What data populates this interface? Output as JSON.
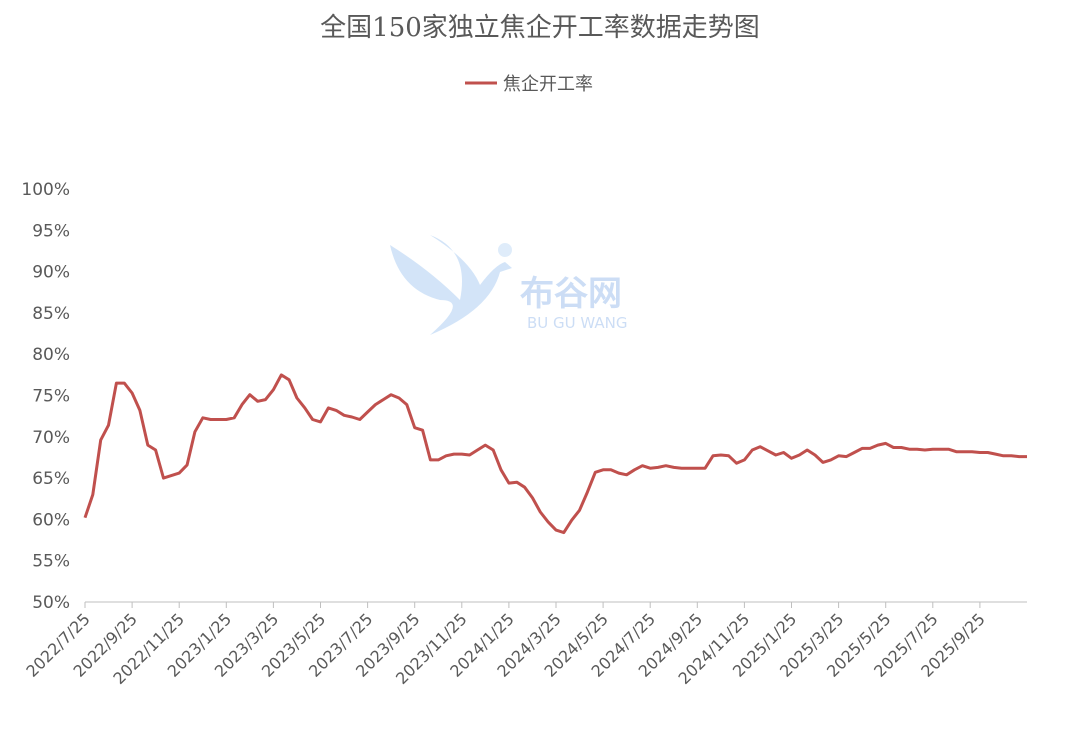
{
  "chart_data": {
    "type": "line",
    "title": "全国150家独立焦企开工率数据走势图",
    "watermark": {
      "name": "布谷网",
      "subtitle": "BU GU WANG"
    },
    "categories": [
      "2022/7/25",
      null,
      null,
      null,
      null,
      null,
      "2022/9/25",
      null,
      null,
      null,
      null,
      null,
      "2022/11/25",
      null,
      null,
      null,
      null,
      null,
      "2023/1/25",
      null,
      null,
      null,
      null,
      null,
      "2023/3/25",
      null,
      null,
      null,
      null,
      null,
      "2023/5/25",
      null,
      null,
      null,
      null,
      null,
      "2023/7/25",
      null,
      null,
      null,
      null,
      null,
      "2023/9/25",
      null,
      null,
      null,
      null,
      null,
      "2023/11/25",
      null,
      null,
      null,
      null,
      null,
      "2024/1/25",
      null,
      null,
      null,
      null,
      null,
      "2024/3/25",
      null,
      null,
      null,
      null,
      null,
      "2024/5/25",
      null,
      null,
      null,
      null,
      null,
      "2024/7/25",
      null,
      null,
      null,
      null,
      null,
      "2024/9/25",
      null,
      null,
      null,
      null,
      null,
      "2024/11/25",
      null,
      null,
      null,
      null,
      null,
      "2025/1/25",
      null,
      null,
      null,
      null,
      null,
      "2025/3/25",
      null,
      null,
      null,
      null,
      null,
      "2025/5/25",
      null,
      null,
      null,
      null,
      null,
      "2025/7/25",
      null,
      null,
      null,
      null,
      null,
      "2025/9/25",
      null,
      null,
      null,
      null,
      null,
      null
    ],
    "series": [
      {
        "name": "焦企开工率",
        "color": "#c0504d",
        "values": [
          60.2,
          63,
          69.6,
          71.4,
          76.5,
          76.5,
          75.3,
          73.2,
          69,
          68.4,
          65,
          65.3,
          65.6,
          66.6,
          70.6,
          72.3,
          72.1,
          72.1,
          72.1,
          72.3,
          73.9,
          75.1,
          74.3,
          74.5,
          75.7,
          77.5,
          76.9,
          74.7,
          73.5,
          72.1,
          71.8,
          73.5,
          73.2,
          72.6,
          72.4,
          72.1,
          73,
          73.9,
          74.5,
          75.1,
          74.7,
          73.9,
          71.1,
          70.8,
          67.2,
          67.2,
          67.7,
          67.9,
          67.9,
          67.8,
          68.4,
          69,
          68.4,
          66,
          64.4,
          64.5,
          63.9,
          62.6,
          60.9,
          59.7,
          58.7,
          58.4,
          59.9,
          61.1,
          63.3,
          65.7,
          66,
          66,
          65.6,
          65.4,
          66,
          66.5,
          66.2,
          66.3,
          66.5,
          66.3,
          66.2,
          66.2,
          66.2,
          66.2,
          67.7,
          67.8,
          67.7,
          66.8,
          67.2,
          68.4,
          68.8,
          68.3,
          67.8,
          68.1,
          67.4,
          67.8,
          68.4,
          67.8,
          66.9,
          67.2,
          67.7,
          67.6,
          68.1,
          68.6,
          68.6,
          69,
          69.2,
          68.7,
          68.7,
          68.5,
          68.5,
          68.4,
          68.5,
          68.5,
          68.5,
          68.2,
          68.2,
          68.2,
          68.1,
          68.1,
          67.9,
          67.7,
          67.7,
          67.6,
          67.6
        ]
      }
    ],
    "ylim": [
      50,
      100
    ],
    "yticks": [
      {
        "value": 50,
        "label": "50%"
      },
      {
        "value": 55,
        "label": "55%"
      },
      {
        "value": 60,
        "label": "60%"
      },
      {
        "value": 65,
        "label": "65%"
      },
      {
        "value": 70,
        "label": "70%"
      },
      {
        "value": 75,
        "label": "75%"
      },
      {
        "value": 80,
        "label": "80%"
      },
      {
        "value": 85,
        "label": "85%"
      },
      {
        "value": 90,
        "label": "90%"
      },
      {
        "value": 95,
        "label": "95%"
      },
      {
        "value": 100,
        "label": "100%"
      }
    ],
    "grid": false,
    "legend": "top"
  }
}
